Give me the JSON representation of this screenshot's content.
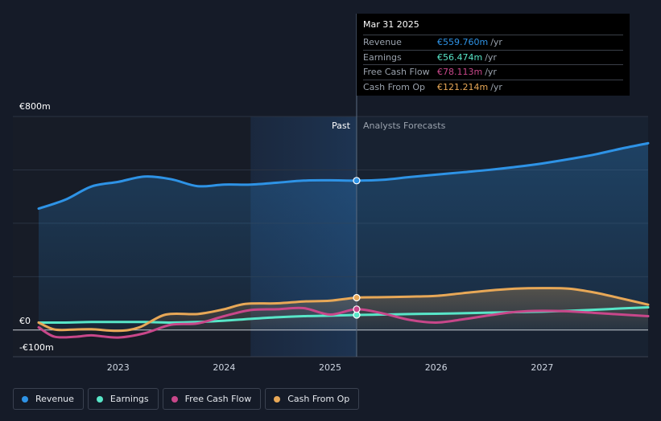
{
  "chart_data": {
    "type": "line",
    "currency_axis": {
      "y_top_label": "€800m",
      "y_zero_label": "€0",
      "y_bottom_label": "-€100m",
      "ylim": [
        -100,
        800
      ]
    },
    "x_ticks": [
      "2023",
      "2024",
      "2025",
      "2026",
      "2027"
    ],
    "x_tick_values": [
      2023.0,
      2024.0,
      2025.0,
      2026.0,
      2027.0
    ],
    "xlim": [
      2022.25,
      2028.0
    ],
    "divider_x": 2025.25,
    "past_region_start": 2024.25,
    "past_label": "Past",
    "forecast_label": "Analysts Forecasts",
    "series": [
      {
        "name": "Revenue",
        "color": "#2e93e6",
        "fill": true,
        "points": [
          [
            2022.25,
            455
          ],
          [
            2022.5,
            488
          ],
          [
            2022.75,
            538
          ],
          [
            2023.0,
            555
          ],
          [
            2023.25,
            575
          ],
          [
            2023.5,
            565
          ],
          [
            2023.75,
            539
          ],
          [
            2024.0,
            545
          ],
          [
            2024.25,
            545
          ],
          [
            2024.5,
            552
          ],
          [
            2024.75,
            560
          ],
          [
            2025.0,
            561
          ],
          [
            2025.25,
            559.76
          ],
          [
            2025.5,
            563
          ],
          [
            2025.75,
            573
          ],
          [
            2026.0,
            582
          ],
          [
            2026.25,
            591
          ],
          [
            2026.5,
            600
          ],
          [
            2026.75,
            611
          ],
          [
            2027.0,
            624
          ],
          [
            2027.25,
            640
          ],
          [
            2027.5,
            658
          ],
          [
            2027.75,
            680
          ],
          [
            2028.0,
            700
          ]
        ]
      },
      {
        "name": "Earnings",
        "color": "#58e6c8",
        "fill": false,
        "points": [
          [
            2022.25,
            28
          ],
          [
            2022.5,
            28
          ],
          [
            2022.75,
            30
          ],
          [
            2023.0,
            30
          ],
          [
            2023.25,
            30
          ],
          [
            2023.5,
            28
          ],
          [
            2023.75,
            30
          ],
          [
            2024.0,
            35
          ],
          [
            2024.25,
            42
          ],
          [
            2024.5,
            48
          ],
          [
            2024.75,
            52
          ],
          [
            2025.0,
            54
          ],
          [
            2025.25,
            56.474
          ],
          [
            2025.5,
            58
          ],
          [
            2025.75,
            60
          ],
          [
            2026.0,
            61
          ],
          [
            2026.25,
            63
          ],
          [
            2026.5,
            65
          ],
          [
            2026.75,
            67
          ],
          [
            2027.0,
            69
          ],
          [
            2027.25,
            72
          ],
          [
            2027.5,
            76
          ],
          [
            2027.75,
            81
          ],
          [
            2028.0,
            85
          ]
        ]
      },
      {
        "name": "Free Cash Flow",
        "color": "#c8478a",
        "fill": false,
        "points": [
          [
            2022.25,
            10
          ],
          [
            2022.4,
            -25
          ],
          [
            2022.6,
            -25
          ],
          [
            2022.75,
            -20
          ],
          [
            2023.0,
            -28
          ],
          [
            2023.25,
            -12
          ],
          [
            2023.5,
            20
          ],
          [
            2023.75,
            25
          ],
          [
            2024.0,
            52
          ],
          [
            2024.25,
            75
          ],
          [
            2024.5,
            78
          ],
          [
            2024.75,
            82
          ],
          [
            2025.0,
            58
          ],
          [
            2025.25,
            78.113
          ],
          [
            2025.5,
            62
          ],
          [
            2025.75,
            38
          ],
          [
            2026.0,
            28
          ],
          [
            2026.25,
            40
          ],
          [
            2026.5,
            55
          ],
          [
            2026.75,
            68
          ],
          [
            2027.0,
            72
          ],
          [
            2027.25,
            70
          ],
          [
            2027.5,
            64
          ],
          [
            2027.75,
            58
          ],
          [
            2028.0,
            52
          ]
        ]
      },
      {
        "name": "Cash From Op",
        "color": "#e8a857",
        "fill": true,
        "points": [
          [
            2022.25,
            28
          ],
          [
            2022.4,
            2
          ],
          [
            2022.6,
            2
          ],
          [
            2022.75,
            3
          ],
          [
            2023.0,
            -3
          ],
          [
            2023.2,
            10
          ],
          [
            2023.45,
            58
          ],
          [
            2023.75,
            60
          ],
          [
            2024.0,
            78
          ],
          [
            2024.2,
            98
          ],
          [
            2024.5,
            100
          ],
          [
            2024.75,
            107
          ],
          [
            2025.0,
            110
          ],
          [
            2025.25,
            121.214
          ],
          [
            2025.5,
            123
          ],
          [
            2025.75,
            125
          ],
          [
            2026.0,
            128
          ],
          [
            2026.25,
            138
          ],
          [
            2026.5,
            148
          ],
          [
            2026.75,
            155
          ],
          [
            2027.0,
            157
          ],
          [
            2027.25,
            155
          ],
          [
            2027.5,
            140
          ],
          [
            2027.75,
            118
          ],
          [
            2028.0,
            95
          ]
        ]
      }
    ]
  },
  "tooltip": {
    "date": "Mar 31 2025",
    "rows": [
      {
        "label": "Revenue",
        "value": "€559.760m",
        "unit": "/yr",
        "color": "#2e93e6"
      },
      {
        "label": "Earnings",
        "value": "€56.474m",
        "unit": "/yr",
        "color": "#58e6c8"
      },
      {
        "label": "Free Cash Flow",
        "value": "€78.113m",
        "unit": "/yr",
        "color": "#c8478a"
      },
      {
        "label": "Cash From Op",
        "value": "€121.214m",
        "unit": "/yr",
        "color": "#e8a857"
      }
    ]
  },
  "legend": [
    {
      "label": "Revenue",
      "color": "#2e93e6"
    },
    {
      "label": "Earnings",
      "color": "#58e6c8"
    },
    {
      "label": "Free Cash Flow",
      "color": "#c8478a"
    },
    {
      "label": "Cash From Op",
      "color": "#e8a857"
    }
  ]
}
